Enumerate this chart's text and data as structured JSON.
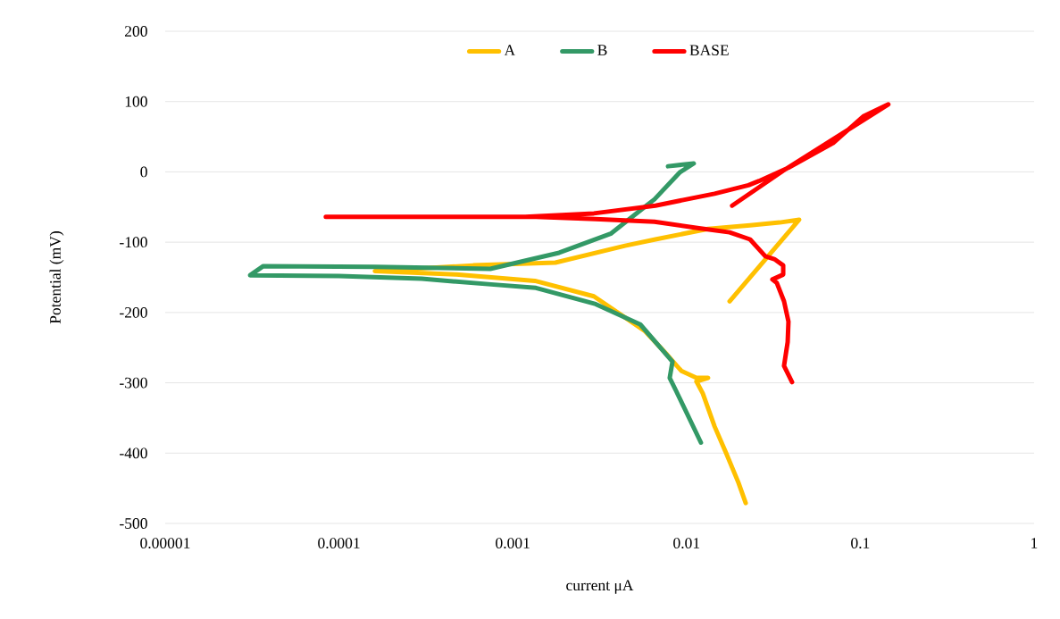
{
  "chart_data": {
    "type": "line",
    "xlabel": "current  μA",
    "ylabel": "Potential (mV)",
    "log": "x",
    "xlim": [
      1e-05,
      1
    ],
    "ylim": [
      -500,
      200
    ],
    "xticks": [
      {
        "value": 1e-05,
        "label": "0.00001"
      },
      {
        "value": 0.0001,
        "label": "0.0001"
      },
      {
        "value": 0.001,
        "label": "0.001"
      },
      {
        "value": 0.01,
        "label": "0.01"
      },
      {
        "value": 0.1,
        "label": "0.1"
      },
      {
        "value": 1,
        "label": "1"
      }
    ],
    "yticks": [
      -500,
      -400,
      -300,
      -200,
      -100,
      0,
      100,
      200
    ],
    "grid": "y",
    "legend": "top",
    "line_style": "solid",
    "series": [
      {
        "name": "A",
        "color": "#ffc000",
        "x": [
          0.0219,
          0.0199,
          0.0169,
          0.0145,
          0.0124,
          0.0114,
          0.0133,
          0.0114,
          0.00933,
          0.00773,
          0.00574,
          0.00293,
          0.00134,
          0.000473,
          0.000161,
          0.000593,
          0.00176,
          0.00443,
          0.00662,
          0.0133,
          0.0232,
          0.0343,
          0.0445,
          0.0177
        ],
        "values": [
          -471,
          -442,
          -400,
          -362,
          -315,
          -298,
          -293,
          -293,
          -283,
          -260,
          -226,
          -177,
          -155,
          -146,
          -141,
          -133,
          -129,
          -105,
          -96,
          -81,
          -76,
          -72,
          -68,
          -184
        ]
      },
      {
        "name": "B",
        "color": "#339966",
        "x": [
          0.0121,
          0.00869,
          0.008,
          0.0083,
          0.00542,
          0.003,
          0.00136,
          0.00075,
          0.000299,
          0.0001,
          3.08e-05,
          3.67e-05,
          0.000161,
          0.000742,
          0.00185,
          0.00366,
          0.00574,
          0.00654,
          0.00912,
          0.011,
          0.00782
        ],
        "values": [
          -385,
          -311,
          -293,
          -270,
          -217,
          -188,
          -165,
          -160,
          -152,
          -148,
          -147,
          -134,
          -135,
          -138,
          -115,
          -88,
          -50,
          -39,
          -1,
          12,
          8
        ]
      },
      {
        "name": "BASE",
        "color": "#ff0000",
        "x": [
          0.0405,
          0.0364,
          0.0382,
          0.0386,
          0.0364,
          0.0331,
          0.0312,
          0.036,
          0.036,
          0.032,
          0.0284,
          0.0232,
          0.0177,
          0.0118,
          0.00654,
          0.003,
          0.00136,
          8.4e-05,
          0.00118,
          0.00293,
          0.00662,
          0.0145,
          0.0227,
          0.0261,
          0.0386,
          0.0698,
          0.104,
          0.145,
          0.0372,
          0.0183
        ],
        "values": [
          -299,
          -276,
          -242,
          -213,
          -184,
          -158,
          -153,
          -146,
          -133,
          -124,
          -120,
          -96,
          -86,
          -80,
          -71,
          -67,
          -64,
          -64,
          -64,
          -59,
          -48,
          -31,
          -19,
          -13,
          6,
          41,
          79,
          96,
          4,
          -48
        ]
      }
    ]
  }
}
